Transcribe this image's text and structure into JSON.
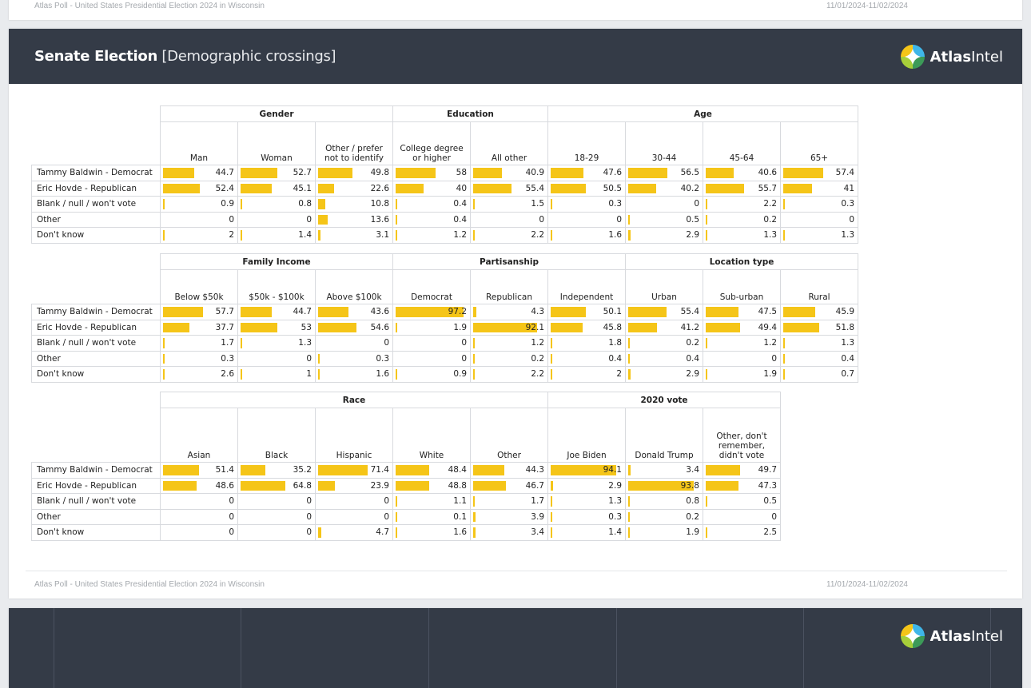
{
  "footer": {
    "text": "Atlas Poll - United States Presidential Election 2024 in Wisconsin",
    "date": "11/01/2024-11/02/2024"
  },
  "header": {
    "title_bold": "Senate Election",
    "title_rest": " [Demographic crossings]"
  },
  "logo": {
    "bold": "Atlas",
    "light": "Intel",
    "colors": [
      "#f5c518",
      "#3fb6e8",
      "#3c9a58",
      "#a7cf3a"
    ]
  },
  "colors": {
    "bar": "#f5c518",
    "header_bg": "#343b47"
  },
  "rows": [
    "Tammy Baldwin - Democrat",
    "Eric Hovde - Republican",
    "Blank / null / won't vote",
    "Other",
    "Don't know"
  ],
  "tables": [
    {
      "groups": [
        {
          "label": "Gender",
          "span": 3
        },
        {
          "label": "Education",
          "span": 2
        },
        {
          "label": "Age",
          "span": 4
        }
      ],
      "columns": [
        "Man",
        "Woman",
        "Other / prefer\nnot to identify",
        "College degree\nor higher",
        "All other",
        "18-29",
        "30-44",
        "45-64",
        "65+"
      ],
      "values": [
        [
          "44.7",
          "52.7",
          "49.8",
          "58",
          "40.9",
          "47.6",
          "56.5",
          "40.6",
          "57.4"
        ],
        [
          "52.4",
          "45.1",
          "22.6",
          "40",
          "55.4",
          "50.5",
          "40.2",
          "55.7",
          "41"
        ],
        [
          "0.9",
          "0.8",
          "10.8",
          "0.4",
          "1.5",
          "0.3",
          "0",
          "2.2",
          "0.3"
        ],
        [
          "0",
          "0",
          "13.6",
          "0.4",
          "0",
          "0",
          "0.5",
          "0.2",
          "0"
        ],
        [
          "2",
          "1.4",
          "3.1",
          "1.2",
          "2.2",
          "1.6",
          "2.9",
          "1.3",
          "1.3"
        ]
      ]
    },
    {
      "groups": [
        {
          "label": "Family Income",
          "span": 3
        },
        {
          "label": "Partisanship",
          "span": 3
        },
        {
          "label": "Location type",
          "span": 3
        }
      ],
      "columns": [
        "Below $50k",
        "$50k - $100k",
        "Above $100k",
        "Democrat",
        "Republican",
        "Independent",
        "Urban",
        "Sub-urban",
        "Rural"
      ],
      "values": [
        [
          "57.7",
          "44.7",
          "43.6",
          "97.2",
          "4.3",
          "50.1",
          "55.4",
          "47.5",
          "45.9"
        ],
        [
          "37.7",
          "53",
          "54.6",
          "1.9",
          "92.1",
          "45.8",
          "41.2",
          "49.4",
          "51.8"
        ],
        [
          "1.7",
          "1.3",
          "0",
          "0",
          "1.2",
          "1.8",
          "0.2",
          "1.2",
          "1.3"
        ],
        [
          "0.3",
          "0",
          "0.3",
          "0",
          "0.2",
          "0.4",
          "0.4",
          "0",
          "0.4"
        ],
        [
          "2.6",
          "1",
          "1.6",
          "0.9",
          "2.2",
          "2",
          "2.9",
          "1.9",
          "0.7"
        ]
      ]
    },
    {
      "groups": [
        {
          "label": "Race",
          "span": 5
        },
        {
          "label": "2020 vote",
          "span": 3
        }
      ],
      "columns": [
        "Asian",
        "Black",
        "Hispanic",
        "White",
        "Other",
        "Joe Biden",
        "Donald Trump",
        "Other, don't\nremember,\ndidn't vote"
      ],
      "values": [
        [
          "51.4",
          "35.2",
          "71.4",
          "48.4",
          "44.3",
          "94.1",
          "3.4",
          "49.7"
        ],
        [
          "48.6",
          "64.8",
          "23.9",
          "48.8",
          "46.7",
          "2.9",
          "93.8",
          "47.3"
        ],
        [
          "0",
          "0",
          "0",
          "1.1",
          "1.7",
          "1.3",
          "0.8",
          "0.5"
        ],
        [
          "0",
          "0",
          "0",
          "0.1",
          "3.9",
          "0.3",
          "0.2",
          "0"
        ],
        [
          "0",
          "0",
          "4.7",
          "1.6",
          "3.4",
          "1.4",
          "1.9",
          "2.5"
        ]
      ]
    }
  ]
}
